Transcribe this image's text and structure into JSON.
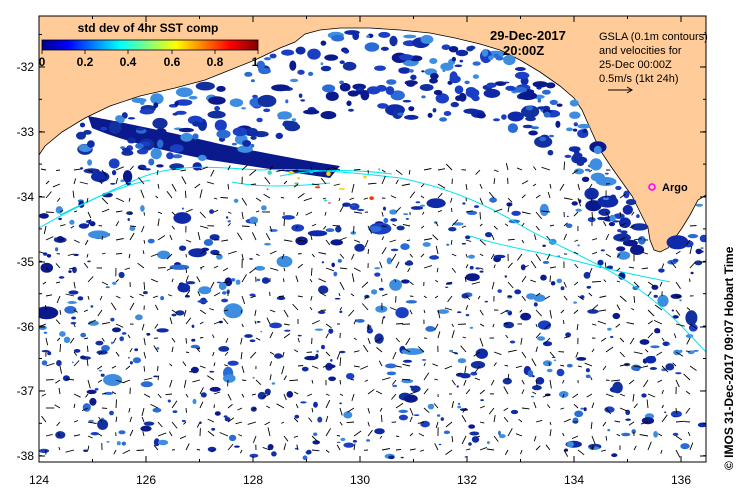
{
  "colorbar": {
    "title": "std dev of 4hr SST comp",
    "ticks": [
      "0",
      "0.2",
      "0.4",
      "0.6",
      "0.8",
      "1"
    ]
  },
  "datetime": {
    "date": "29-Dec-2017",
    "time": "20:00Z"
  },
  "legend": {
    "lines": [
      "GSLA (0.1m contours)",
      "and velocities for",
      "25-Dec 00:00Z",
      "0.5m/s (1kt 24h)"
    ]
  },
  "marker": {
    "label": "Argo",
    "color": "#ff00ff"
  },
  "axes": {
    "y_ticks": [
      "-32",
      "-33",
      "-34",
      "-35",
      "-36",
      "-37",
      "-38"
    ],
    "x_ticks": [
      "124",
      "126",
      "128",
      "130",
      "132",
      "134",
      "136"
    ]
  },
  "credit": "© IMOS 31-Dec-2017 09:07 Hobart Time",
  "colors": {
    "land": "#ffcc99",
    "contour": "#00e5ee",
    "sst_low": "#0a1a8c",
    "sst_mid": "#2a6bd6"
  }
}
